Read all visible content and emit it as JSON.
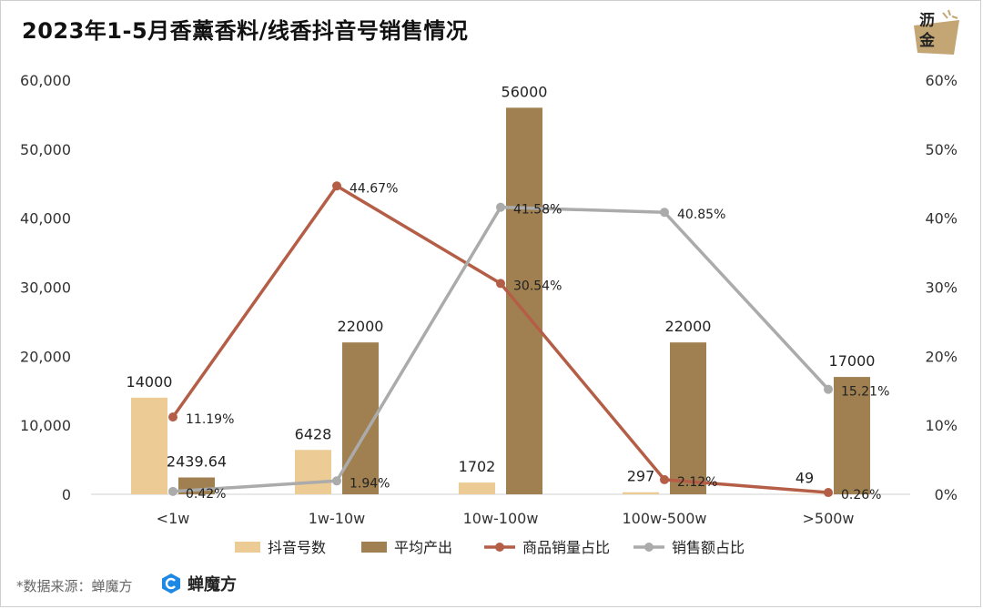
{
  "title": "2023年1-5月香薰香料/线香抖音号销售情况",
  "logo_text": [
    "沥",
    "金"
  ],
  "footer": {
    "source": "*数据来源：蝉魔方",
    "brand": "蝉魔方"
  },
  "colors": {
    "bar1": "#EDCB94",
    "bar2": "#A08050",
    "line1": "#B55E47",
    "line2": "#ABABAB",
    "brand_icon": "#1E88E5",
    "logo_bg": "#C4A675"
  },
  "chart_data": {
    "type": "bar",
    "categories": [
      "<1w",
      "1w-10w",
      "10w-100w",
      "100w-500w",
      ">500w"
    ],
    "y_left": {
      "ylim": [
        0,
        60000
      ],
      "ticks": [
        "0",
        "10,000",
        "20,000",
        "30,000",
        "40,000",
        "50,000",
        "60,000"
      ]
    },
    "y_right": {
      "ylim": [
        0,
        0.6
      ],
      "ticks": [
        "0%",
        "10%",
        "20%",
        "30%",
        "40%",
        "50%",
        "60%"
      ]
    },
    "series": [
      {
        "name": "抖音号数",
        "kind": "bar",
        "axis": "left",
        "values": [
          14000,
          6428,
          1702,
          297,
          49
        ],
        "labels": [
          "14000",
          "6428",
          "1702",
          "297",
          "49"
        ]
      },
      {
        "name": "平均产出",
        "kind": "bar",
        "axis": "left",
        "values": [
          2439.64,
          22000,
          56000,
          22000,
          17000
        ],
        "labels": [
          "2439.64",
          "22000",
          "56000",
          "22000",
          "17000"
        ]
      },
      {
        "name": "商品销量占比",
        "kind": "line",
        "axis": "right",
        "values": [
          0.1119,
          0.4467,
          0.3054,
          0.0212,
          0.0026
        ],
        "labels": [
          "11.19%",
          "44.67%",
          "30.54%",
          "2.12%",
          "0.26%"
        ]
      },
      {
        "name": "销售额占比",
        "kind": "line",
        "axis": "right",
        "values": [
          0.0042,
          0.0194,
          0.4158,
          0.4085,
          0.1521
        ],
        "labels": [
          "0.42%",
          "1.94%",
          "41.58%",
          "40.85%",
          "15.21%"
        ]
      }
    ],
    "legend": "bottom",
    "grid": false
  }
}
